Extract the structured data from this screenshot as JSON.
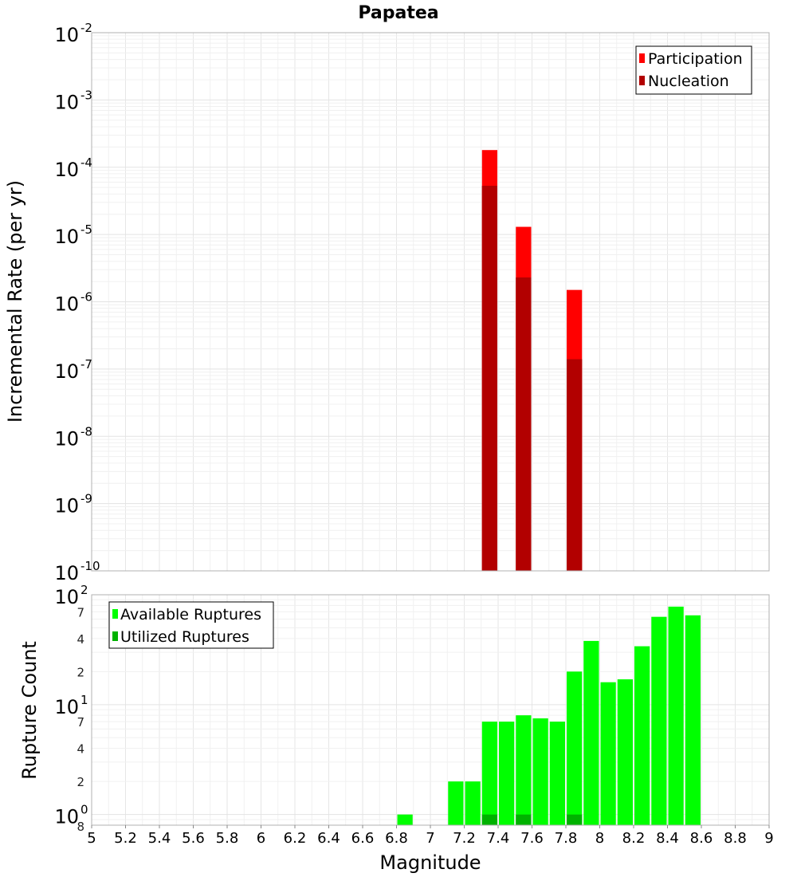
{
  "chart_data": [
    {
      "type": "bar",
      "title": "Papatea",
      "xlabel": "Magnitude",
      "ylabel": "Incremental Rate (per yr)",
      "yscale": "log",
      "xlim": [
        5,
        9
      ],
      "ylim": [
        1e-10,
        0.01
      ],
      "y_ticks": [
        {
          "base": "10",
          "exp": "-10",
          "value": 1e-10
        },
        {
          "base": "10",
          "exp": "-9",
          "value": 1e-09
        },
        {
          "base": "10",
          "exp": "-8",
          "value": 1e-08
        },
        {
          "base": "10",
          "exp": "-7",
          "value": 1e-07
        },
        {
          "base": "10",
          "exp": "-6",
          "value": 1e-06
        },
        {
          "base": "10",
          "exp": "-5",
          "value": 1e-05
        },
        {
          "base": "10",
          "exp": "-4",
          "value": 0.0001
        },
        {
          "base": "10",
          "exp": "-3",
          "value": 0.001
        },
        {
          "base": "10",
          "exp": "-2",
          "value": 0.01
        }
      ],
      "legend_position": "top-right",
      "bin_width": 0.1,
      "series": [
        {
          "name": "Participation",
          "color": "#ff0000",
          "points": [
            {
              "x": 7.35,
              "y": 0.00018
            },
            {
              "x": 7.55,
              "y": 1.3e-05
            },
            {
              "x": 7.85,
              "y": 1.5e-06
            }
          ]
        },
        {
          "name": "Nucleation",
          "color": "#b20000",
          "points": [
            {
              "x": 7.35,
              "y": 5.3e-05
            },
            {
              "x": 7.55,
              "y": 2.3e-06
            },
            {
              "x": 7.85,
              "y": 1.4e-07
            }
          ]
        }
      ]
    },
    {
      "type": "bar",
      "xlabel": "Magnitude",
      "ylabel": "Rupture Count",
      "yscale": "log",
      "xlim": [
        5,
        9
      ],
      "ylim": [
        0.8,
        100
      ],
      "x_ticks": [
        "5",
        "5.2",
        "5.4",
        "5.6",
        "5.8",
        "6",
        "6.2",
        "6.4",
        "6.6",
        "6.8",
        "7",
        "7.2",
        "7.4",
        "7.6",
        "7.8",
        "8",
        "8.2",
        "8.4",
        "8.6",
        "8.8",
        "9"
      ],
      "y_ticks": [
        {
          "base": "10",
          "exp": "0",
          "value": 1
        },
        {
          "base": "10",
          "exp": "1",
          "value": 10
        },
        {
          "base": "10",
          "exp": "2",
          "value": 100
        }
      ],
      "y_minor_ticks": [
        {
          "label": "8",
          "value": 0.8
        },
        {
          "label": "2",
          "value": 2
        },
        {
          "label": "4",
          "value": 4
        },
        {
          "label": "7",
          "value": 7
        },
        {
          "label": "2",
          "value": 20
        },
        {
          "label": "4",
          "value": 40
        },
        {
          "label": "7",
          "value": 70
        }
      ],
      "legend_position": "top-left",
      "bin_width": 0.1,
      "series": [
        {
          "name": "Available Ruptures",
          "color": "#00ff00",
          "points": [
            {
              "x": 6.85,
              "y": 1
            },
            {
              "x": 7.15,
              "y": 2
            },
            {
              "x": 7.25,
              "y": 2
            },
            {
              "x": 7.35,
              "y": 7
            },
            {
              "x": 7.45,
              "y": 7
            },
            {
              "x": 7.55,
              "y": 8
            },
            {
              "x": 7.65,
              "y": 7.5
            },
            {
              "x": 7.75,
              "y": 7
            },
            {
              "x": 7.85,
              "y": 20
            },
            {
              "x": 7.95,
              "y": 38
            },
            {
              "x": 8.05,
              "y": 16
            },
            {
              "x": 8.15,
              "y": 17
            },
            {
              "x": 8.25,
              "y": 34
            },
            {
              "x": 8.35,
              "y": 63
            },
            {
              "x": 8.45,
              "y": 78
            },
            {
              "x": 8.55,
              "y": 65
            }
          ]
        },
        {
          "name": "Utilized Ruptures",
          "color": "#00b200",
          "points": [
            {
              "x": 7.35,
              "y": 1
            },
            {
              "x": 7.55,
              "y": 1
            },
            {
              "x": 7.85,
              "y": 1
            }
          ]
        }
      ]
    }
  ]
}
